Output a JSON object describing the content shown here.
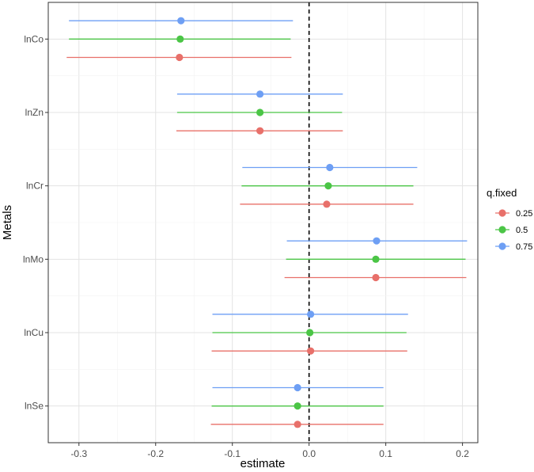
{
  "chart_data": {
    "type": "scatter",
    "subtype": "forest-plot-with-error-bars",
    "title": "",
    "xlabel": "estimate",
    "ylabel": "Metals",
    "xlim": [
      -0.34,
      0.22
    ],
    "x_ticks": [
      -0.3,
      -0.2,
      -0.1,
      0.0,
      0.1,
      0.2
    ],
    "x_tick_labels": [
      "-0.3",
      "-0.2",
      "-0.1",
      "0.0",
      "0.1",
      "0.2"
    ],
    "categories": [
      "lnCo",
      "lnZn",
      "lnCr",
      "lnMo",
      "lnCu",
      "lnSe"
    ],
    "reference_line": {
      "x": 0,
      "style": "dashed",
      "color": "#000000"
    },
    "grid": true,
    "legend": {
      "title": "q.fixed",
      "placement": "right"
    },
    "series": [
      {
        "name": "0.25",
        "color": "#E8706A",
        "estimates": [
          -0.169,
          -0.064,
          0.023,
          0.087,
          0.002,
          -0.015
        ],
        "lower": [
          -0.316,
          -0.173,
          -0.09,
          -0.032,
          -0.127,
          -0.128
        ],
        "upper": [
          -0.023,
          0.044,
          0.136,
          0.205,
          0.128,
          0.097
        ]
      },
      {
        "name": "0.5",
        "color": "#4BC546",
        "estimates": [
          -0.168,
          -0.064,
          0.025,
          0.087,
          0.001,
          -0.015
        ],
        "lower": [
          -0.313,
          -0.172,
          -0.088,
          -0.03,
          -0.126,
          -0.127
        ],
        "upper": [
          -0.024,
          0.043,
          0.136,
          0.204,
          0.127,
          0.097
        ]
      },
      {
        "name": "0.75",
        "color": "#6E9FF4",
        "estimates": [
          -0.167,
          -0.064,
          0.027,
          0.088,
          0.002,
          -0.015
        ],
        "lower": [
          -0.313,
          -0.172,
          -0.087,
          -0.029,
          -0.126,
          -0.126
        ],
        "upper": [
          -0.021,
          0.044,
          0.141,
          0.206,
          0.129,
          0.097
        ]
      }
    ]
  }
}
